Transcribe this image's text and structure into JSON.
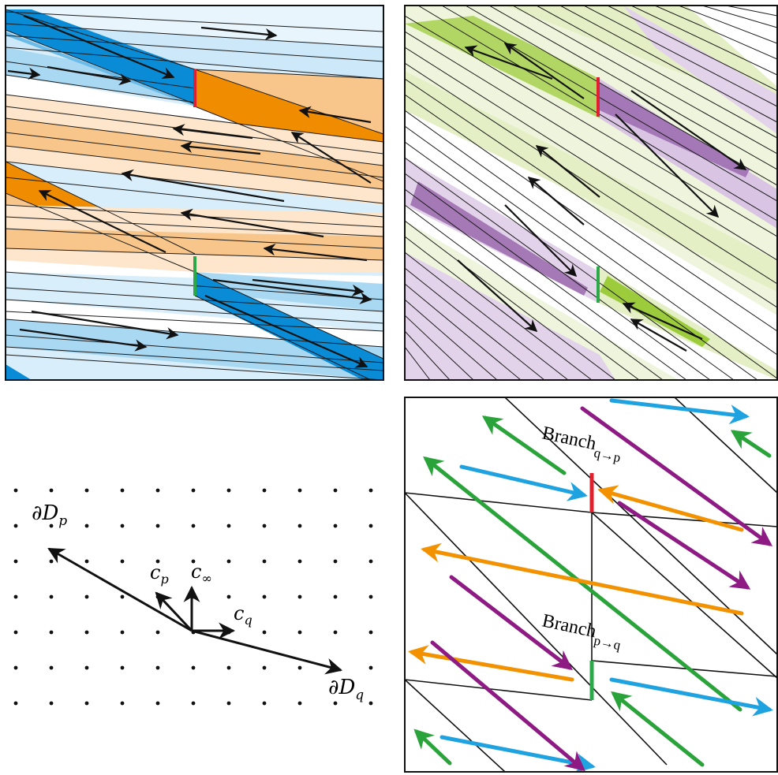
{
  "colors": {
    "blue_dark": "#0a8bd6",
    "blue_mid": "#8ccbee",
    "blue_light": "#d8eefa",
    "orange_dark": "#f08c00",
    "orange_mid": "#f8c68a",
    "orange_light": "#fde6cc",
    "green_dark": "#9ccb3b",
    "green_light": "#e4efc6",
    "purple_dark": "#9d6fb0",
    "purple_light": "#e3d3ea",
    "red_cut": "#e0202c",
    "green_cut": "#2ba84a",
    "arrow_green": "#2aa33b",
    "arrow_blue": "#1fa2e0",
    "arrow_orange": "#f39200",
    "arrow_purple": "#8e1b84"
  },
  "lattice_panel": {
    "boundary_p": {
      "base": "∂D",
      "sub": "p"
    },
    "boundary_q": {
      "base": "∂D",
      "sub": "q"
    },
    "vector_p": {
      "base": "c",
      "sub": "p"
    },
    "vector_inf": {
      "base": "c",
      "sub": "∞"
    },
    "vector_q": {
      "base": "c",
      "sub": "q"
    }
  },
  "schematic_panel": {
    "branch_upper": {
      "base": "Branch",
      "sub": "q→p"
    },
    "branch_lower": {
      "base": "Branch",
      "sub": "p→q"
    }
  }
}
